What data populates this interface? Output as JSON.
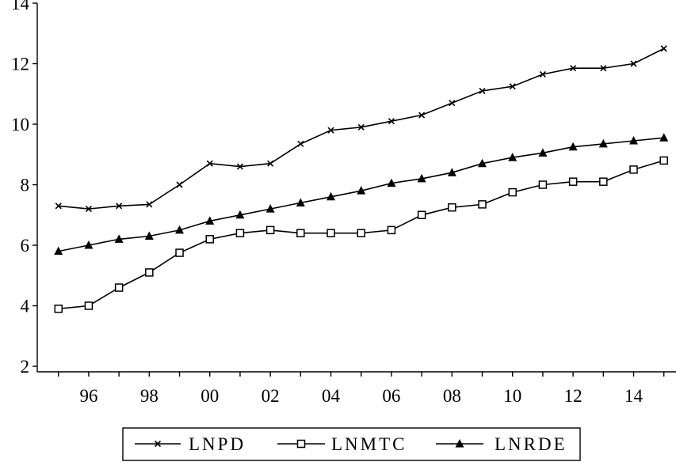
{
  "chart_data": {
    "type": "line",
    "title": "",
    "xlabel": "",
    "ylabel": "",
    "x": [
      1995,
      1996,
      1997,
      1998,
      1999,
      2000,
      2001,
      2002,
      2003,
      2004,
      2005,
      2006,
      2007,
      2008,
      2009,
      2010,
      2011,
      2012,
      2013,
      2014,
      2015
    ],
    "xlim": [
      1994.3,
      2015.4
    ],
    "ylim": [
      2,
      14
    ],
    "y_ticks": [
      2,
      4,
      6,
      8,
      10,
      12,
      14
    ],
    "x_ticks": [
      {
        "value": 1996,
        "label": "96"
      },
      {
        "value": 1998,
        "label": "98"
      },
      {
        "value": 2000,
        "label": "00"
      },
      {
        "value": 2002,
        "label": "02"
      },
      {
        "value": 2004,
        "label": "04"
      },
      {
        "value": 2006,
        "label": "06"
      },
      {
        "value": 2008,
        "label": "08"
      },
      {
        "value": 2010,
        "label": "10"
      },
      {
        "value": 2012,
        "label": "12"
      },
      {
        "value": 2014,
        "label": "14"
      }
    ],
    "grid": false,
    "legend_position": "bottom",
    "series": [
      {
        "name": "LNPD",
        "marker": "x",
        "values": [
          7.3,
          7.2,
          7.3,
          7.35,
          8.0,
          8.7,
          8.6,
          8.7,
          9.35,
          9.8,
          9.9,
          10.1,
          10.3,
          10.7,
          11.1,
          11.25,
          11.65,
          11.85,
          11.85,
          12.0,
          12.5
        ]
      },
      {
        "name": "LNMTC",
        "marker": "square",
        "values": [
          3.9,
          4.0,
          4.6,
          5.1,
          5.75,
          6.2,
          6.4,
          6.5,
          6.4,
          6.4,
          6.4,
          6.5,
          7.0,
          7.25,
          7.35,
          7.75,
          8.0,
          8.1,
          8.1,
          8.5,
          8.8
        ]
      },
      {
        "name": "LNRDE",
        "marker": "triangle",
        "values": [
          5.8,
          6.0,
          6.2,
          6.3,
          6.5,
          6.8,
          7.0,
          7.2,
          7.4,
          7.6,
          7.8,
          8.05,
          8.2,
          8.4,
          8.7,
          8.9,
          9.05,
          9.25,
          9.35,
          9.45,
          9.55
        ]
      }
    ]
  }
}
